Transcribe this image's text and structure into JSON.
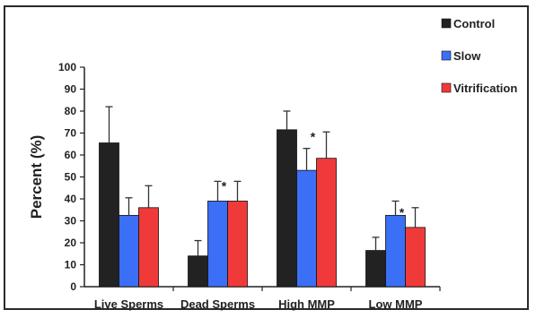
{
  "chart_data": {
    "type": "bar",
    "title": "",
    "xlabel": "",
    "ylabel": "Percent (%)",
    "ylim": [
      0,
      100
    ],
    "yticks": [
      0,
      10,
      20,
      30,
      40,
      50,
      60,
      70,
      80,
      90,
      100
    ],
    "grid": false,
    "legend_position": "top-right",
    "categories": [
      "Live Sperms",
      "Dead Sperms",
      "High MMP",
      "Low MMP"
    ],
    "series": [
      {
        "name": "Control",
        "color": "#222222",
        "values": [
          65.5,
          14,
          71.5,
          16.5
        ],
        "error": [
          16.5,
          7,
          8.5,
          6
        ]
      },
      {
        "name": "Slow",
        "color": "#3b6ff5",
        "values": [
          32.5,
          39,
          53,
          32.5
        ],
        "error": [
          8,
          9,
          10,
          6.5
        ]
      },
      {
        "name": "Vitrification",
        "color": "#f03a3a",
        "values": [
          36,
          39,
          58.5,
          27
        ],
        "error": [
          10,
          9,
          12,
          9
        ]
      }
    ],
    "annotations": [
      {
        "text": "*",
        "category": "Live Sperms",
        "series": "Slow"
      },
      {
        "text": "*",
        "category": "Dead Sperms",
        "series": "Vitrification"
      },
      {
        "text": "*",
        "category": "High MMP",
        "series": "Vitrification"
      },
      {
        "text": "*",
        "category": "Low MMP",
        "series": "Vitrification"
      }
    ]
  }
}
